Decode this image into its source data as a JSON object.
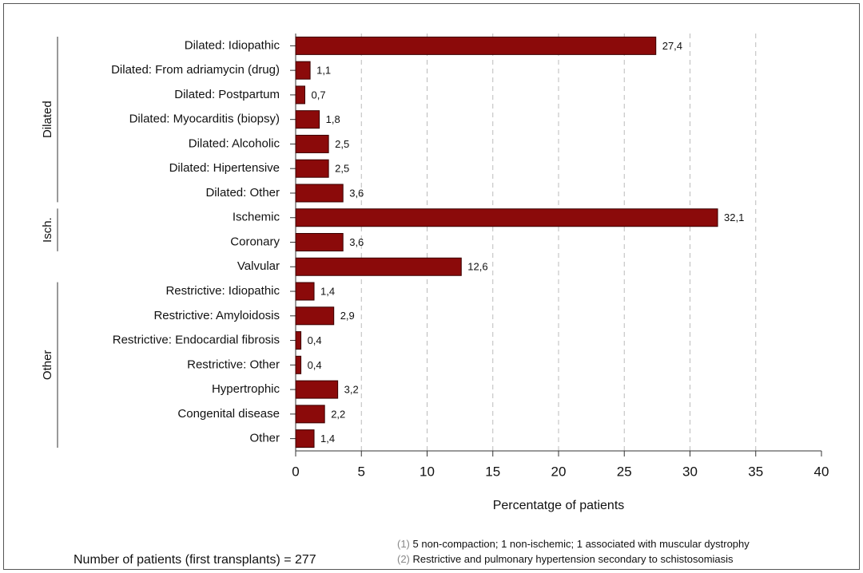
{
  "chart_data": {
    "type": "barh",
    "categories": [
      "Dilated: Idiopathic",
      "Dilated: From adriamycin (drug)",
      "Dilated: Postpartum",
      "Dilated: Myocarditis (biopsy)",
      "Dilated: Alcoholic",
      "Dilated: Hipertensive",
      "Dilated: Other",
      "Ischemic",
      "Coronary",
      "Valvular",
      "Restrictive: Idiopathic",
      "Restrictive: Amyloidosis",
      "Restrictive: Endocardial fibrosis",
      "Restrictive: Other",
      "Hypertrophic",
      "Congenital disease",
      "Other"
    ],
    "values": [
      27.4,
      1.1,
      0.7,
      1.8,
      2.5,
      2.5,
      3.6,
      32.1,
      3.6,
      12.6,
      1.4,
      2.9,
      0.4,
      0.4,
      3.2,
      2.2,
      1.4
    ],
    "value_labels": [
      "27,4",
      "1,1",
      "0,7",
      "1,8",
      "2,5",
      "2,5",
      "3,6",
      "32,1",
      "3,6",
      "12,6",
      "1,4",
      "2,9",
      "0,4",
      "0,4",
      "3,2",
      "2,2",
      "1,4"
    ],
    "color": "#8b0a0a",
    "groups": [
      {
        "label": "Dilated",
        "span": [
          0,
          6
        ]
      },
      {
        "label": "Isch.",
        "span": [
          7,
          8
        ]
      },
      {
        "label": "Other",
        "span": [
          10,
          16
        ]
      }
    ],
    "x_label": "Percentatge of patients",
    "xlim": [
      0,
      40
    ],
    "xticks": [
      0,
      5,
      10,
      15,
      20,
      25,
      30,
      35,
      40
    ],
    "grid": true,
    "caption": "Number of patients (first transplants) = 277",
    "notes": [
      {
        "marker": "(1)",
        "text": "5 non-compaction; 1 non-ischemic; 1 associated with muscular dystrophy"
      },
      {
        "marker": "(2)",
        "text": "Restrictive and pulmonary hypertension secondary to schistosomiasis"
      }
    ]
  }
}
